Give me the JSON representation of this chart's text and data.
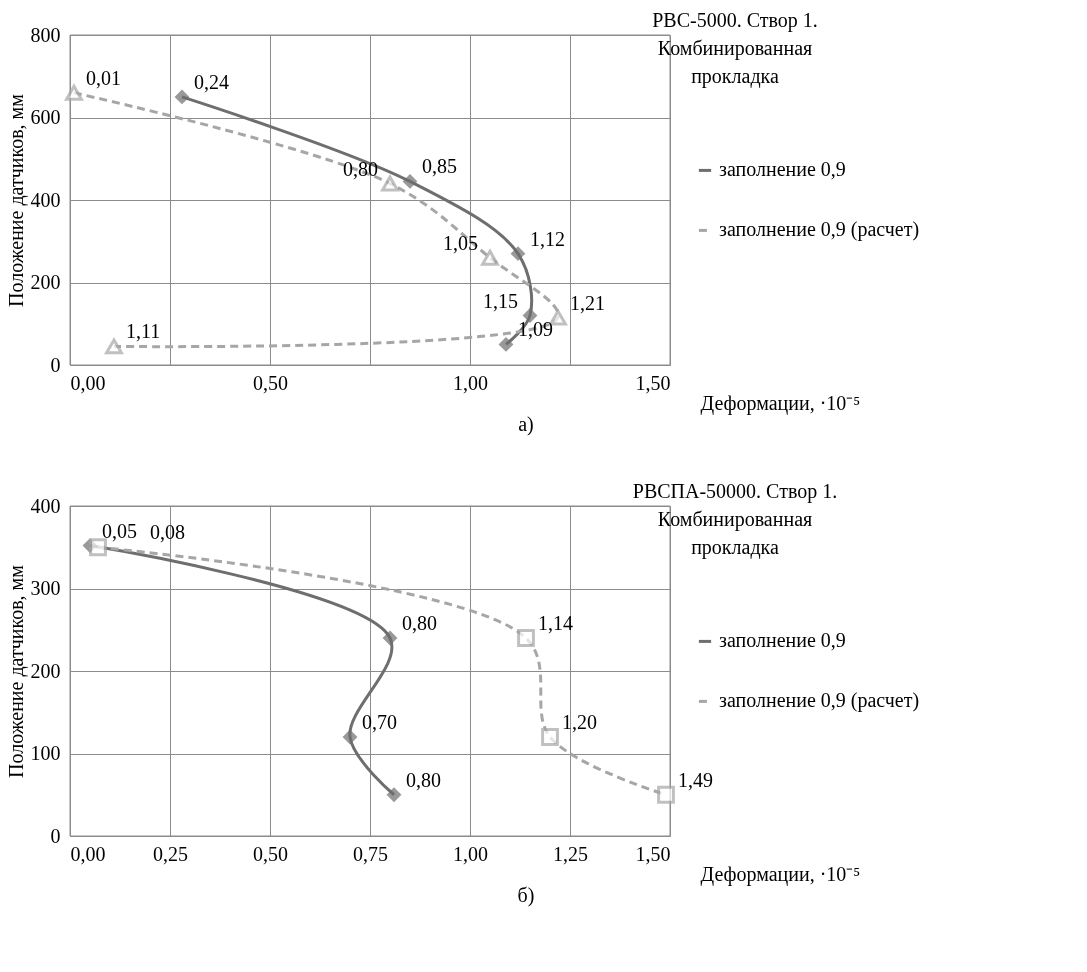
{
  "chart_data": [
    {
      "type": "line",
      "title": "РВС-5000. Створ 1.\nКомбинированная\nпрокладка",
      "xlabel": "Деформации, ·10⁻⁵",
      "ylabel": "Положение датчиков, мм",
      "xlim": [
        0,
        1.5
      ],
      "xticks": [
        {
          "value": 0,
          "label": "0,00"
        },
        {
          "value": 0.25,
          "label": null
        },
        {
          "value": 0.5,
          "label": "0,50"
        },
        {
          "value": 0.75,
          "label": null
        },
        {
          "value": 1,
          "label": "1,00"
        },
        {
          "value": 1.25,
          "label": null
        },
        {
          "value": 1.5,
          "label": "1,50"
        }
      ],
      "ylim": [
        0,
        800
      ],
      "yticks": [
        0,
        200,
        400,
        600,
        800
      ],
      "grid": true,
      "legend": "right",
      "series": [
        {
          "name": "заполнение 0,9",
          "color": "#6e6e6e",
          "marker": "diamond",
          "line_style": "solid",
          "x": [
            0.28,
            0.85,
            1.12,
            1.15,
            1.09
          ],
          "values": [
            650,
            445,
            270,
            120,
            50
          ]
        },
        {
          "name": "заполнение 0,9 (расчет)",
          "color": "#a6a6a6",
          "marker": "triangle",
          "line_style": "dashed",
          "x": [
            0.01,
            0.8,
            1.05,
            1.22,
            0.11
          ],
          "values": [
            660,
            440,
            260,
            115,
            45
          ]
        }
      ],
      "annotations": [
        {
          "text": "0,01",
          "x": 0.01,
          "y": 660
        },
        {
          "text": "0,24",
          "x": 0.28,
          "y": 650
        },
        {
          "text": "0,80",
          "x": 0.8,
          "y": 440
        },
        {
          "text": "0,85",
          "x": 0.85,
          "y": 445
        },
        {
          "text": "1,05",
          "x": 1.05,
          "y": 260
        },
        {
          "text": "1,12",
          "x": 1.12,
          "y": 270
        },
        {
          "text": "1,21",
          "x": 1.22,
          "y": 115
        },
        {
          "text": "1,15",
          "x": 1.15,
          "y": 120
        },
        {
          "text": "1,11",
          "x": 0.11,
          "y": 45
        },
        {
          "text": "1,09",
          "x": 1.09,
          "y": 50
        },
        "а)"
      ]
    },
    {
      "type": "line",
      "title": "РВСПА-50000. Створ 1.\nКомбинированная\nпрокладка",
      "xlabel": "Деформации, ·10⁻⁵",
      "ylabel": "Положение датчиков, мм",
      "xlim": [
        0,
        1.5
      ],
      "xticks": [
        {
          "value": 0,
          "label": "0,00"
        },
        {
          "value": 0.25,
          "label": "0,25"
        },
        {
          "value": 0.5,
          "label": "0,50"
        },
        {
          "value": 0.75,
          "label": "0,75"
        },
        {
          "value": 1,
          "label": "1,00"
        },
        {
          "value": 1.25,
          "label": "1,25"
        },
        {
          "value": 1.5,
          "label": "1,50"
        }
      ],
      "ylim": [
        0,
        400
      ],
      "yticks": [
        0,
        100,
        200,
        300,
        400
      ],
      "grid": true,
      "legend": "right",
      "series": [
        {
          "name": "заполнение 0,9",
          "color": "#6e6e6e",
          "marker": "diamond",
          "line_style": "solid",
          "x": [
            0.05,
            0.8,
            0.7,
            0.81
          ],
          "values": [
            352,
            240,
            120,
            50
          ]
        },
        {
          "name": "заполнение 0,9 (расчет)",
          "color": "#a6a6a6",
          "marker": "square",
          "line_style": "dashed",
          "x": [
            0.07,
            1.14,
            1.2,
            1.49
          ],
          "values": [
            350,
            240,
            120,
            50
          ]
        }
      ],
      "annotations": [
        {
          "text": "0,05",
          "x": 0.05,
          "y": 352
        },
        {
          "text": "0,08",
          "x": 0.07,
          "y": 350
        },
        {
          "text": "0,80",
          "x": 0.8,
          "y": 240
        },
        {
          "text": "1,14",
          "x": 1.14,
          "y": 240
        },
        {
          "text": "0,70",
          "x": 0.7,
          "y": 120
        },
        {
          "text": "1,20",
          "x": 1.2,
          "y": 120
        },
        {
          "text": "0,80",
          "x": 0.81,
          "y": 50
        },
        {
          "text": "1,49",
          "x": 1.49,
          "y": 50
        },
        "б)"
      ]
    }
  ]
}
